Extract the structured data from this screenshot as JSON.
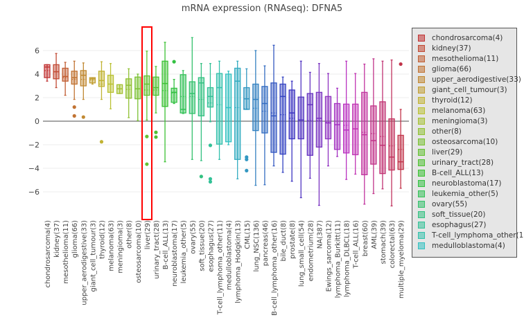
{
  "chart_data": {
    "type": "box",
    "title": "mRNA expression (RNAseq): DFNA5",
    "xlabel": "",
    "ylabel": "",
    "ylim": [
      -8.4,
      8.2
    ],
    "yticks": [
      6,
      4,
      2,
      0,
      -2,
      -4,
      -6
    ],
    "grid": true,
    "zero_line": true,
    "legend_placement": "right",
    "highlighted_category": "liver(29)",
    "highlight_color": "#ff0000",
    "categories": [
      "chondrosarcoma(4)",
      "kidney(37)",
      "mesothelioma(11)",
      "glioma(66)",
      "upper_aerodigestive(33)",
      "giant_cell_tumour(3)",
      "thyroid(12)",
      "melanoma(63)",
      "meningioma(3)",
      "other(8)",
      "osteosarcoma(10)",
      "liver(29)",
      "urinary_tract(28)",
      "B-cell_ALL(13)",
      "neuroblastoma(17)",
      "leukemia_other(5)",
      "ovary(55)",
      "soft_tissue(20)",
      "esophagus(27)",
      "T-cell_lymphoma_other(11)",
      "medulloblastoma(4)",
      "lymphoma_Hodgkin(13)",
      "CML(15)",
      "lung_NSC(136)",
      "pancreas(46)",
      "B-cell_lymphoma_other(16)",
      "bile_duct(8)",
      "prostate(8)",
      "lung_small_cell(54)",
      "endometrium(28)",
      "NA(387)",
      "Ewings_sarcoma(12)",
      "lymphoma_Burkitt(11)",
      "lymphoma_DLBCL(18)",
      "T-cell_ALL(16)",
      "breast(60)",
      "AML(39)",
      "stomach(39)",
      "colorectal(63)",
      "multiple_myeloma(29)"
    ],
    "boxes": [
      {
        "lo": 3.4,
        "q1": 3.7,
        "median": 4.6,
        "q3": 4.8,
        "hi": 4.8,
        "mean": 4.3,
        "outliers": []
      },
      {
        "lo": 2.85,
        "q1": 3.6,
        "median": 4.2,
        "q3": 4.8,
        "hi": 5.75,
        "mean": 4.2,
        "outliers": []
      },
      {
        "lo": 2.2,
        "q1": 3.4,
        "median": 3.8,
        "q3": 4.5,
        "hi": 5.0,
        "mean": 3.7,
        "outliers": []
      },
      {
        "lo": 1.85,
        "q1": 3.15,
        "median": 3.7,
        "q3": 4.25,
        "hi": 5.1,
        "mean": 3.55,
        "outliers": [
          1.2,
          0.45
        ]
      },
      {
        "lo": 1.85,
        "q1": 3.0,
        "median": 3.9,
        "q3": 4.3,
        "hi": 4.95,
        "mean": 3.55,
        "outliers": [
          0.35
        ]
      },
      {
        "lo": 3.15,
        "q1": 3.25,
        "median": 3.6,
        "q3": 3.7,
        "hi": 3.7,
        "mean": 3.5,
        "outliers": []
      },
      {
        "lo": 1.85,
        "q1": 2.95,
        "median": 3.45,
        "q3": 4.25,
        "hi": 5.05,
        "mean": 3.15,
        "outliers": [
          -1.75
        ]
      },
      {
        "lo": 1.05,
        "q1": 2.45,
        "median": 3.15,
        "q3": 3.9,
        "hi": 4.9,
        "mean": 3.15,
        "outliers": []
      },
      {
        "lo": 2.35,
        "q1": 2.35,
        "median": 2.75,
        "q3": 3.1,
        "hi": 3.1,
        "mean": 2.75,
        "outliers": []
      },
      {
        "lo": 0.3,
        "q1": 1.95,
        "median": 3.05,
        "q3": 3.6,
        "hi": 4.45,
        "mean": 2.7,
        "outliers": []
      },
      {
        "lo": 0.05,
        "q1": 1.9,
        "median": 2.75,
        "q3": 3.75,
        "hi": 4.0,
        "mean": 2.75,
        "outliers": []
      },
      {
        "lo": 0.1,
        "q1": 2.2,
        "median": 3.15,
        "q3": 3.85,
        "hi": 5.95,
        "mean": 2.65,
        "outliers": [
          -1.3,
          -3.65
        ]
      },
      {
        "lo": 0.7,
        "q1": 2.2,
        "median": 2.85,
        "q3": 3.75,
        "hi": 4.65,
        "mean": 2.65,
        "outliers": [
          -0.95,
          -1.35
        ]
      },
      {
        "lo": -3.45,
        "q1": 1.25,
        "median": 3.2,
        "q3": 5.1,
        "hi": 6.7,
        "mean": 2.6,
        "outliers": []
      },
      {
        "lo": 1.5,
        "q1": 1.6,
        "median": 2.45,
        "q3": 2.8,
        "hi": 3.55,
        "mean": 2.4,
        "outliers": [
          5.05
        ]
      },
      {
        "lo": 0.65,
        "q1": 0.7,
        "median": 1.0,
        "q3": 3.95,
        "hi": 4.3,
        "mean": 2.1,
        "outliers": []
      },
      {
        "lo": -3.25,
        "q1": 0.65,
        "median": 2.35,
        "q3": 3.35,
        "hi": 7.1,
        "mean": 2.1,
        "outliers": []
      },
      {
        "lo": -3.35,
        "q1": 0.45,
        "median": 3.25,
        "q3": 3.7,
        "hi": 4.9,
        "mean": 1.85,
        "outliers": [
          -4.7
        ]
      },
      {
        "lo": -0.05,
        "q1": 1.2,
        "median": 2.1,
        "q3": 2.85,
        "hi": 4.9,
        "mean": 1.55,
        "outliers": [
          -2.05,
          -4.9,
          -5.15
        ]
      },
      {
        "lo": -3.25,
        "q1": -1.95,
        "median": 2.85,
        "q3": 4.05,
        "hi": 5.1,
        "mean": 1.4,
        "outliers": []
      },
      {
        "lo": -2.0,
        "q1": -1.75,
        "median": 1.15,
        "q3": 4.0,
        "hi": 4.25,
        "mean": 1.15,
        "outliers": []
      },
      {
        "lo": -4.9,
        "q1": -3.25,
        "median": 3.4,
        "q3": 4.5,
        "hi": 5.1,
        "mean": 1.15,
        "outliers": []
      },
      {
        "lo": 1.0,
        "q1": 1.0,
        "median": 1.9,
        "q3": 2.85,
        "hi": 4.45,
        "mean": 1.05,
        "outliers": [
          -3.05,
          -3.25,
          -4.2
        ]
      },
      {
        "lo": -5.45,
        "q1": -0.8,
        "median": 1.85,
        "q3": 3.15,
        "hi": 6.0,
        "mean": 1.1,
        "outliers": []
      },
      {
        "lo": -5.4,
        "q1": -1.0,
        "median": 1.5,
        "q3": 2.95,
        "hi": 4.7,
        "mean": 0.85,
        "outliers": []
      },
      {
        "lo": -3.8,
        "q1": -2.65,
        "median": 0.45,
        "q3": 3.25,
        "hi": 6.45,
        "mean": 0.7,
        "outliers": []
      },
      {
        "lo": -4.35,
        "q1": -2.8,
        "median": 2.1,
        "q3": 3.15,
        "hi": 3.75,
        "mean": 0.55,
        "outliers": []
      },
      {
        "lo": -5.1,
        "q1": -1.5,
        "median": 0.7,
        "q3": 2.65,
        "hi": 3.4,
        "mean": 0.25,
        "outliers": []
      },
      {
        "lo": -6.5,
        "q1": -1.5,
        "median": 0.1,
        "q3": 2.05,
        "hi": 5.1,
        "mean": 0.1,
        "outliers": []
      },
      {
        "lo": -4.85,
        "q1": -2.9,
        "median": 1.4,
        "q3": 2.35,
        "hi": 4.15,
        "mean": 0.05,
        "outliers": []
      },
      {
        "lo": -7.15,
        "q1": -2.2,
        "median": 0.25,
        "q3": 2.45,
        "hi": 4.9,
        "mean": 0.05,
        "outliers": []
      },
      {
        "lo": -3.8,
        "q1": -1.5,
        "median": -0.15,
        "q3": 2.1,
        "hi": 4.05,
        "mean": -0.1,
        "outliers": []
      },
      {
        "lo": -3.0,
        "q1": -2.4,
        "median": -0.3,
        "q3": 1.5,
        "hi": 2.8,
        "mean": -0.3,
        "outliers": []
      },
      {
        "lo": -4.95,
        "q1": -2.7,
        "median": -0.75,
        "q3": 1.45,
        "hi": 5.1,
        "mean": -0.35,
        "outliers": []
      },
      {
        "lo": -4.5,
        "q1": -2.85,
        "median": -0.65,
        "q3": 1.45,
        "hi": 4.05,
        "mean": -0.65,
        "outliers": []
      },
      {
        "lo": -7.05,
        "q1": -4.55,
        "median": -1.15,
        "q3": 2.45,
        "hi": 4.85,
        "mean": -0.95,
        "outliers": []
      },
      {
        "lo": -6.15,
        "q1": -3.65,
        "median": -1.65,
        "q3": 1.3,
        "hi": 5.3,
        "mean": -1.05,
        "outliers": []
      },
      {
        "lo": -5.75,
        "q1": -4.45,
        "median": -2.05,
        "q3": 1.65,
        "hi": 5.1,
        "mean": -1.3,
        "outliers": []
      },
      {
        "lo": -7.2,
        "q1": -4.15,
        "median": -3.05,
        "q3": 0.2,
        "hi": 5.2,
        "mean": -2.1,
        "outliers": []
      },
      {
        "lo": -5.7,
        "q1": -4.1,
        "median": -3.45,
        "q3": -1.2,
        "hi": 1.0,
        "mean": -2.4,
        "outliers": [
          4.85
        ]
      }
    ],
    "legend_visible": [
      "chondrosarcoma(4)",
      "kidney(37)",
      "mesothelioma(11)",
      "glioma(66)",
      "upper_aerodigestive(33)",
      "giant_cell_tumour(3)",
      "thyroid(12)",
      "melanoma(63)",
      "meningioma(3)",
      "other(8)",
      "osteosarcoma(10)",
      "liver(29)",
      "urinary_tract(28)",
      "B-cell_ALL(13)",
      "neuroblastoma(17)",
      "leukemia_other(5)",
      "ovary(55)",
      "soft_tissue(20)",
      "esophagus(27)",
      "T-cell_lymphoma_other(1",
      "medulloblastoma(4)"
    ]
  }
}
